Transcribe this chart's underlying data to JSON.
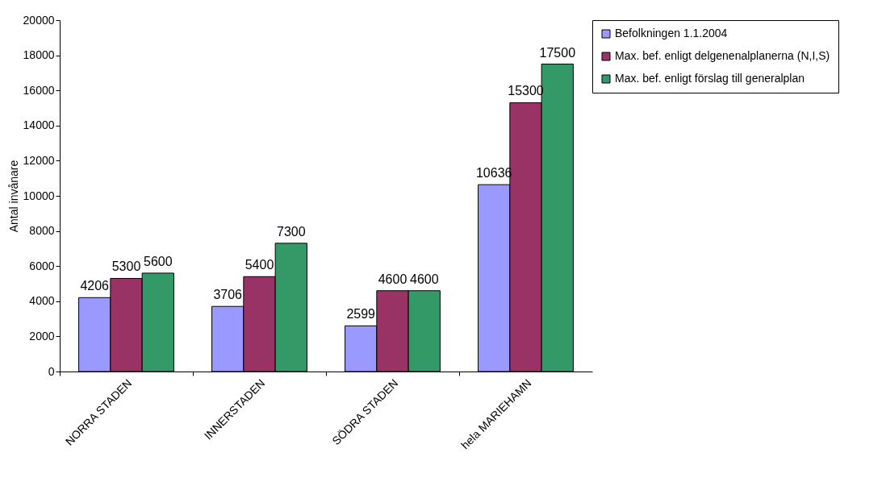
{
  "chart_data": {
    "type": "bar",
    "ylabel": "Antal invånare",
    "categories": [
      "NORRA  STADEN",
      "INNERSTADEN",
      "SÖDRA  STADEN",
      "hela  MARIEHAMN",
      null
    ],
    "series": [
      {
        "name": "Befolkningen 1.1.2004",
        "color": "#9999ff",
        "values": [
          4206,
          3706,
          2599,
          10636,
          null
        ]
      },
      {
        "name": "Max. bef. enligt delgenenalplanerna (N,I,S)",
        "color": "#993366",
        "values": [
          5300,
          5400,
          4600,
          15300,
          null
        ]
      },
      {
        "name": "Max. bef. enligt förslag till generalplan",
        "color": "#339966",
        "values": [
          5600,
          7300,
          4600,
          17500,
          null
        ]
      }
    ],
    "ylim": [
      0,
      20000
    ],
    "yticks": [
      0,
      2000,
      4000,
      6000,
      8000,
      10000,
      12000,
      14000,
      16000,
      18000,
      20000
    ],
    "grid": false,
    "legend": "right",
    "data_labels": true
  }
}
